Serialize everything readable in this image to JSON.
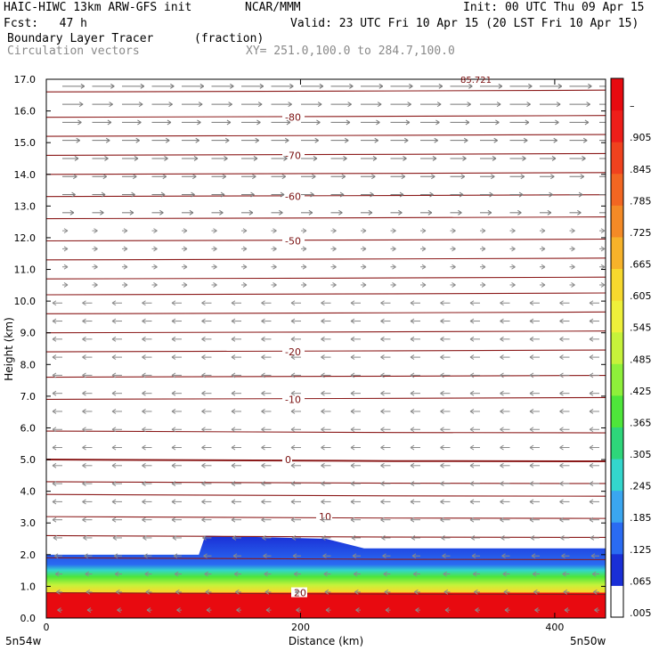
{
  "header": {
    "model": "HAIC-HIWC 13km ARW-GFS init",
    "org": "NCAR/MMM",
    "init": "Init: 00 UTC Thu 09 Apr 15",
    "fcst": "Fcst:   47 h",
    "valid": "Valid: 23 UTC Fri 10 Apr 15 (20 LST Fri 10 Apr 15)",
    "field": "Boundary Layer Tracer",
    "units": "(fraction)",
    "vectors": "Circulation vectors",
    "xy": "XY= 251.0,100.0 to 284.7,100.0"
  },
  "chart_data": {
    "type": "heatmap",
    "xlabel": "Distance (km)",
    "ylabel": "Height (km)",
    "xlim": [
      0,
      440
    ],
    "ylim": [
      0,
      17
    ],
    "x_ticks": [
      0,
      200,
      400
    ],
    "y_ticks": [
      "0.0",
      "1.0",
      "2.0",
      "3.0",
      "4.0",
      "5.0",
      "6.0",
      "7.0",
      "8.0",
      "9.0",
      "10.0",
      "11.0",
      "12.0",
      "13.0",
      "14.0",
      "15.0",
      "16.0",
      "17.0"
    ],
    "x_end_labels": [
      "5n54w",
      "5n50w"
    ],
    "colorbar": {
      "labels": [
        ".005",
        ".065",
        ".125",
        ".185",
        ".245",
        ".305",
        ".365",
        ".425",
        ".485",
        ".545",
        ".605",
        ".665",
        ".725",
        ".785",
        ".845",
        ".905",
        "–"
      ],
      "colors": [
        "#ffffff",
        "#1a2fd6",
        "#2a6bf2",
        "#3aa6f0",
        "#33d6cc",
        "#2ed67a",
        "#4ee63a",
        "#8ef03a",
        "#c6f23a",
        "#eef03a",
        "#f6d82e",
        "#f6b22a",
        "#f48a26",
        "#f26622",
        "#f0421e",
        "#ee1e1a",
        "#e80a10"
      ]
    },
    "temperature_isotherms": [
      {
        "label": "10",
        "height_km": 3.2
      },
      {
        "label": "0",
        "height_km": 5.0
      },
      {
        "label": "-10",
        "height_km": 6.9
      },
      {
        "label": "-20",
        "height_km": 8.4
      },
      {
        "label": "-50",
        "height_km": 11.9
      },
      {
        "label": "-60",
        "height_km": 13.3
      },
      {
        "label": "-70",
        "height_km": 14.6
      },
      {
        "label": "-80",
        "height_km": 15.8
      },
      {
        "label": "20",
        "height_km": 0.8
      }
    ],
    "isotherm_lines_km": [
      0.8,
      1.9,
      2.6,
      3.2,
      3.9,
      4.3,
      5.0,
      5.9,
      6.9,
      7.6,
      8.4,
      9.0,
      9.6,
      10.2,
      10.7,
      11.3,
      11.9,
      12.6,
      13.3,
      14.0,
      14.6,
      15.2,
      15.8,
      16.6
    ],
    "top_label": "85.721",
    "tracer_layer": {
      "description_values": [
        {
          "x_km": 0,
          "top_km": 2.0
        },
        {
          "x_km": 120,
          "top_km": 2.0
        },
        {
          "x_km": 125,
          "top_km": 2.6
        },
        {
          "x_km": 220,
          "top_km": 2.5
        },
        {
          "x_km": 250,
          "top_km": 2.2
        },
        {
          "x_km": 440,
          "top_km": 2.2
        }
      ],
      "red_top_km": 0.8
    }
  }
}
